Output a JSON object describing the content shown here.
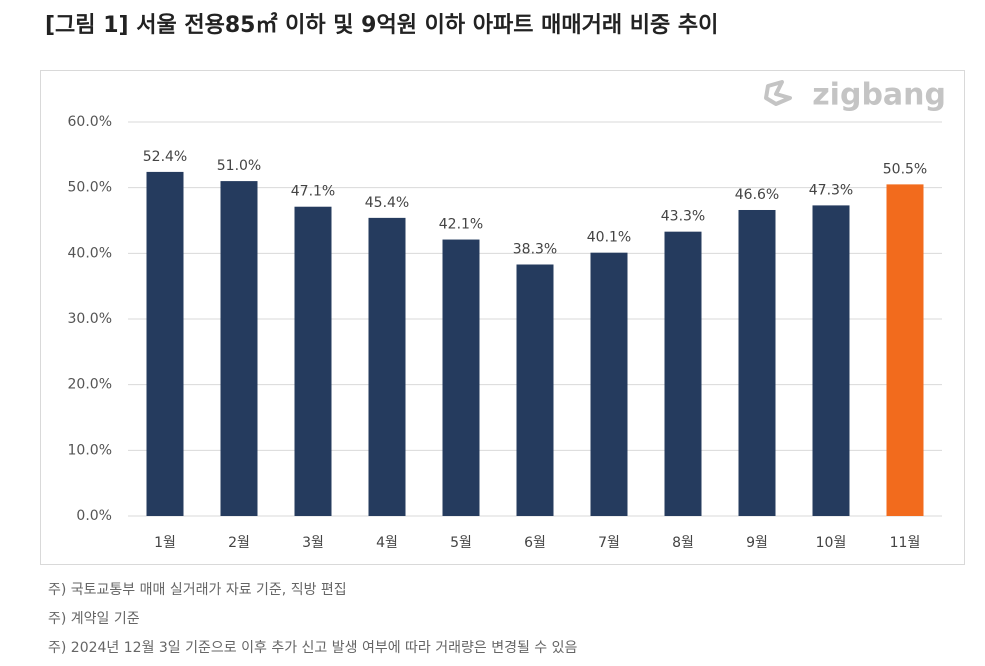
{
  "chart_data": {
    "type": "bar",
    "title": "[그림 1] 서울 전용85㎡ 이하 및 9억원 이하 아파트 매매거래 비중 추이",
    "watermark": "zigbang",
    "categories": [
      "1월",
      "2월",
      "3월",
      "4월",
      "5월",
      "6월",
      "7월",
      "8월",
      "9월",
      "10월",
      "11월"
    ],
    "values": [
      52.4,
      51.0,
      47.1,
      45.4,
      42.1,
      38.3,
      40.1,
      43.3,
      46.6,
      47.3,
      50.5
    ],
    "value_labels": [
      "52.4%",
      "51.0%",
      "47.1%",
      "45.4%",
      "42.1%",
      "38.3%",
      "40.1%",
      "43.3%",
      "46.6%",
      "47.3%",
      "50.5%"
    ],
    "colors": [
      "#253b5e",
      "#253b5e",
      "#253b5e",
      "#253b5e",
      "#253b5e",
      "#253b5e",
      "#253b5e",
      "#253b5e",
      "#253b5e",
      "#253b5e",
      "#f26b1d"
    ],
    "ylim": [
      0,
      60
    ],
    "yticks": [
      {
        "value": 0,
        "label": "0.0%"
      },
      {
        "value": 10,
        "label": "10.0%"
      },
      {
        "value": 20,
        "label": "20.0%"
      },
      {
        "value": 30,
        "label": "30.0%"
      },
      {
        "value": 40,
        "label": "40.0%"
      },
      {
        "value": 50,
        "label": "50.0%"
      },
      {
        "value": 60,
        "label": "60.0%"
      }
    ],
    "grid": true,
    "notes": [
      "주) 국토교통부 매매 실거래가 자료 기준, 직방 편집",
      "주) 계약일 기준",
      "주) 2024년 12월 3일 기준으로 이후 추가 신고 발생 여부에 따라 거래량은 변경될 수 있음"
    ]
  }
}
